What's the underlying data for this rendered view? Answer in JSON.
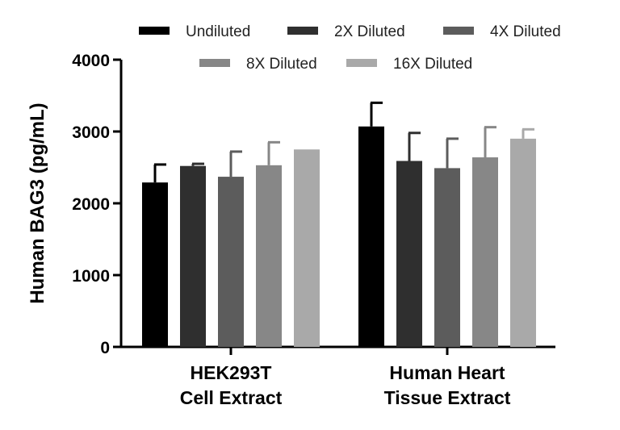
{
  "chart_data": {
    "type": "bar",
    "ylabel": "Human BAG3 (pg/mL)",
    "ylim": [
      0,
      4000
    ],
    "yticks": [
      0,
      1000,
      2000,
      3000,
      4000
    ],
    "yticks_labels": [
      "0",
      "1000",
      "2000",
      "3000",
      "4000"
    ],
    "grid": false,
    "legend_position": "top",
    "categories": [
      {
        "lines": [
          "HEK293T",
          "Cell Extract"
        ]
      },
      {
        "lines": [
          "Human Heart",
          "Tissue Extract"
        ]
      }
    ],
    "series": [
      {
        "name": "Undiluted",
        "color": "#000000",
        "values": [
          2290,
          3070
        ],
        "errors": [
          250,
          330
        ]
      },
      {
        "name": "2X Diluted",
        "color": "#2f2f2f",
        "values": [
          2520,
          2590
        ],
        "errors": [
          30,
          390
        ]
      },
      {
        "name": "4X Diluted",
        "color": "#5c5c5c",
        "values": [
          2370,
          2490
        ],
        "errors": [
          350,
          410
        ]
      },
      {
        "name": "8X Diluted",
        "color": "#878787",
        "values": [
          2530,
          2640
        ],
        "errors": [
          320,
          420
        ]
      },
      {
        "name": "16X Diluted",
        "color": "#a9a9a9",
        "values": [
          2750,
          2900
        ],
        "errors": [
          0,
          130
        ]
      }
    ]
  }
}
